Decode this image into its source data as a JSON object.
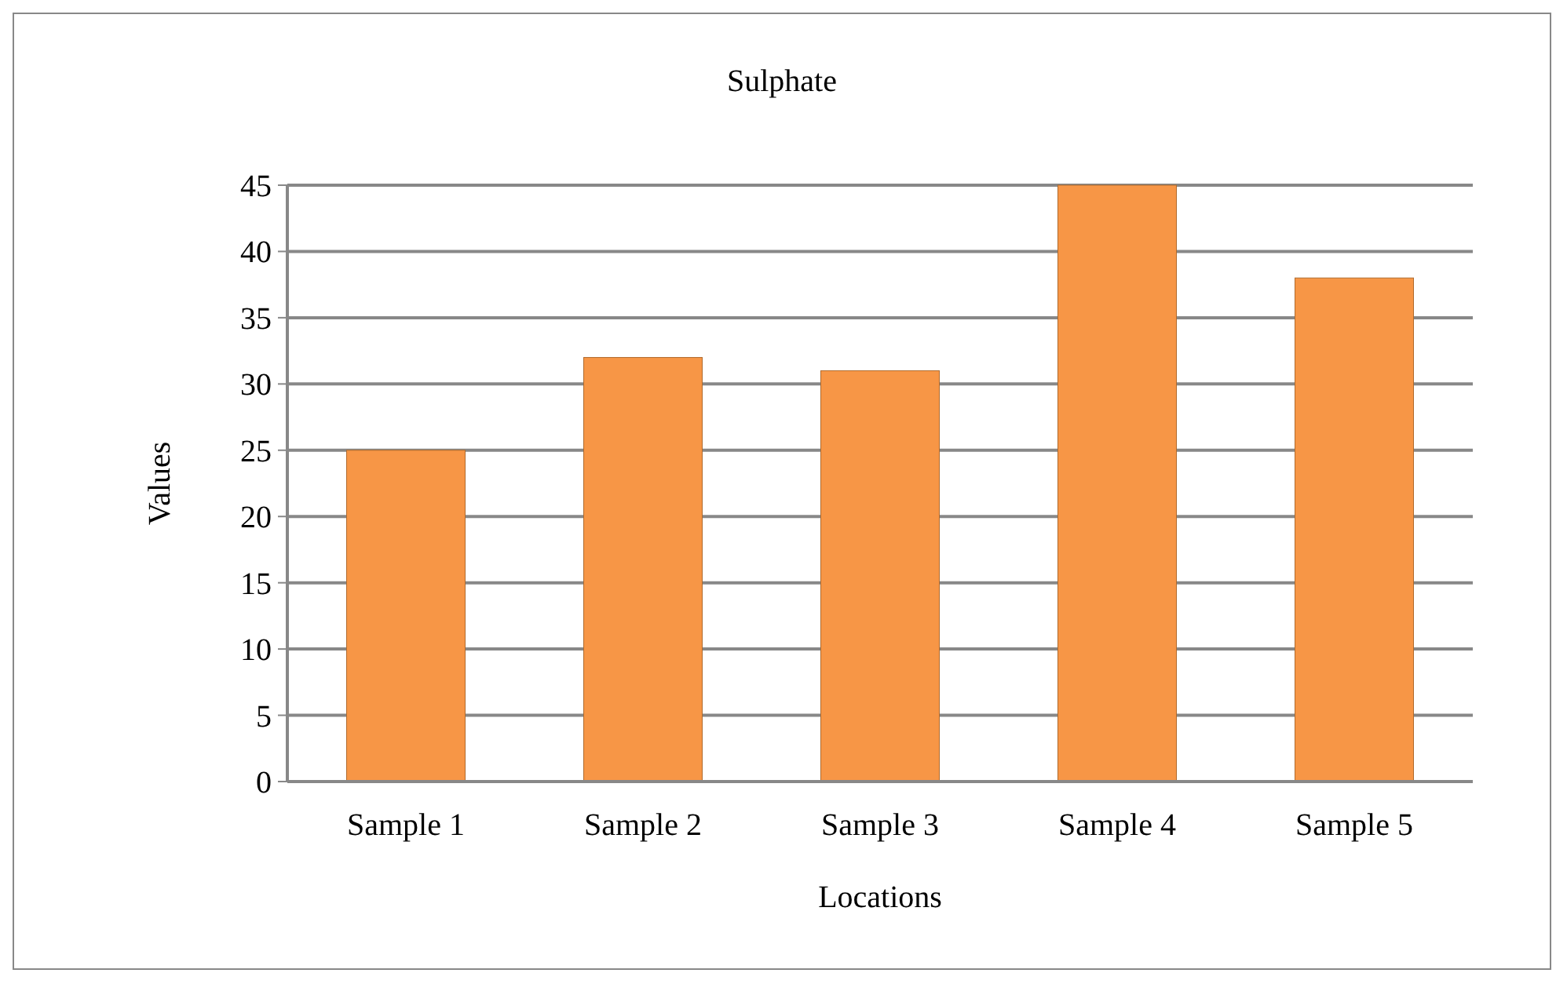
{
  "chart_data": {
    "type": "bar",
    "title": "Sulphate",
    "xlabel": "Locations",
    "ylabel": "Values",
    "categories": [
      "Sample 1",
      "Sample 2",
      "Sample 3",
      "Sample 4",
      "Sample 5"
    ],
    "values": [
      25,
      32,
      31,
      45,
      38
    ],
    "color": "#f79646",
    "ylim": [
      0,
      45
    ],
    "yticks": [
      0,
      5,
      10,
      15,
      20,
      25,
      30,
      35,
      40,
      45
    ],
    "grid": "y"
  }
}
